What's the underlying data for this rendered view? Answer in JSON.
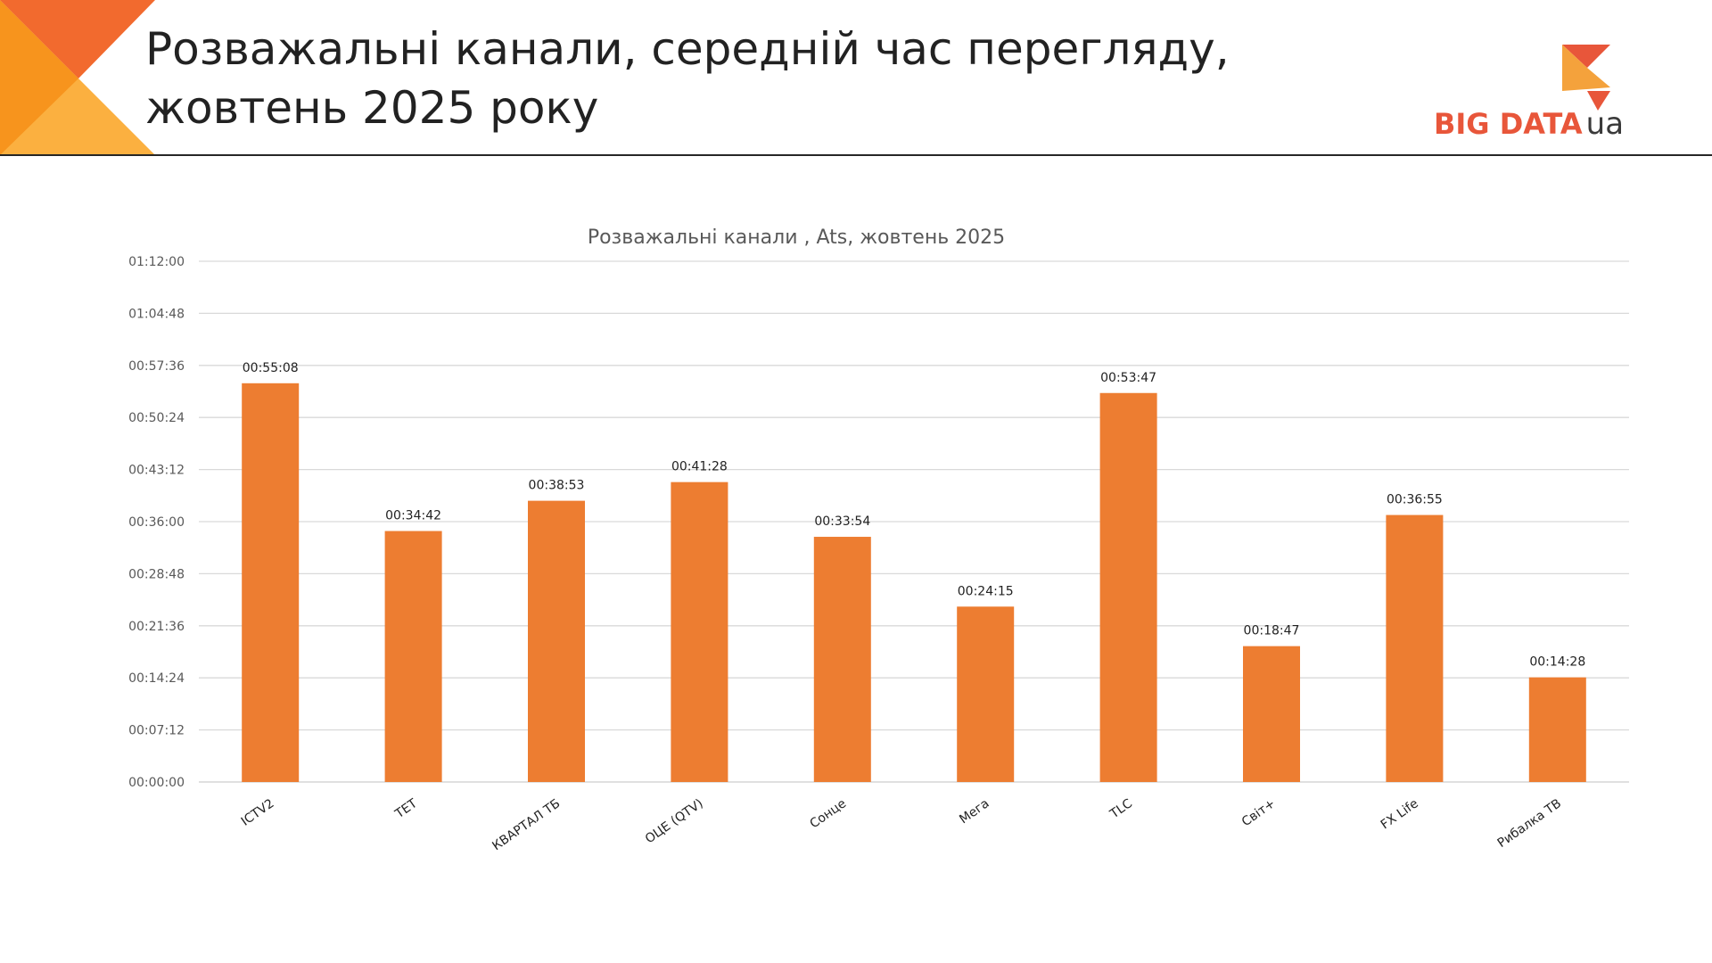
{
  "slide": {
    "title_line1": "Розважальні канали, середній час перегляду,",
    "title_line2": "жовтень 2025 року"
  },
  "logo": {
    "text_main": "BIG DATA",
    "text_sub": "ua",
    "colors": {
      "red": "#e8563a",
      "orange": "#f4a23c",
      "dark": "#3a3a3a"
    }
  },
  "colors": {
    "bar": "#ed7d31",
    "corner_dark": "#f26a2e",
    "corner_mid": "#f7941d",
    "corner_light": "#fbb040"
  },
  "chart_data": {
    "type": "bar",
    "title": "Розважальні канали , Ats, жовтень 2025",
    "categories": [
      "ICTV2",
      "ТЕТ",
      "КВАРТАЛ ТБ",
      "ОЦЕ (QTV)",
      "Сонце",
      "Мега",
      "TLC",
      "Світ+",
      "FX Life",
      "Рибалка ТВ"
    ],
    "values_seconds": [
      3308,
      2082,
      2333,
      2488,
      2034,
      1455,
      3227,
      1127,
      2215,
      868
    ],
    "data_labels": [
      "00:55:08",
      "00:34:42",
      "00:38:53",
      "00:41:28",
      "00:33:54",
      "00:24:15",
      "00:53:47",
      "00:18:47",
      "00:36:55",
      "00:14:28"
    ],
    "yticks_seconds": [
      0,
      432,
      864,
      1296,
      1728,
      2160,
      2592,
      3024,
      3456,
      3888,
      4320
    ],
    "ytick_labels": [
      "00:00:00",
      "00:07:12",
      "00:14:24",
      "00:21:36",
      "00:28:48",
      "00:36:00",
      "00:43:12",
      "00:50:24",
      "00:57:36",
      "01:04:48",
      "01:12:00"
    ],
    "ylim_seconds": [
      0,
      4320
    ],
    "grid": true
  }
}
